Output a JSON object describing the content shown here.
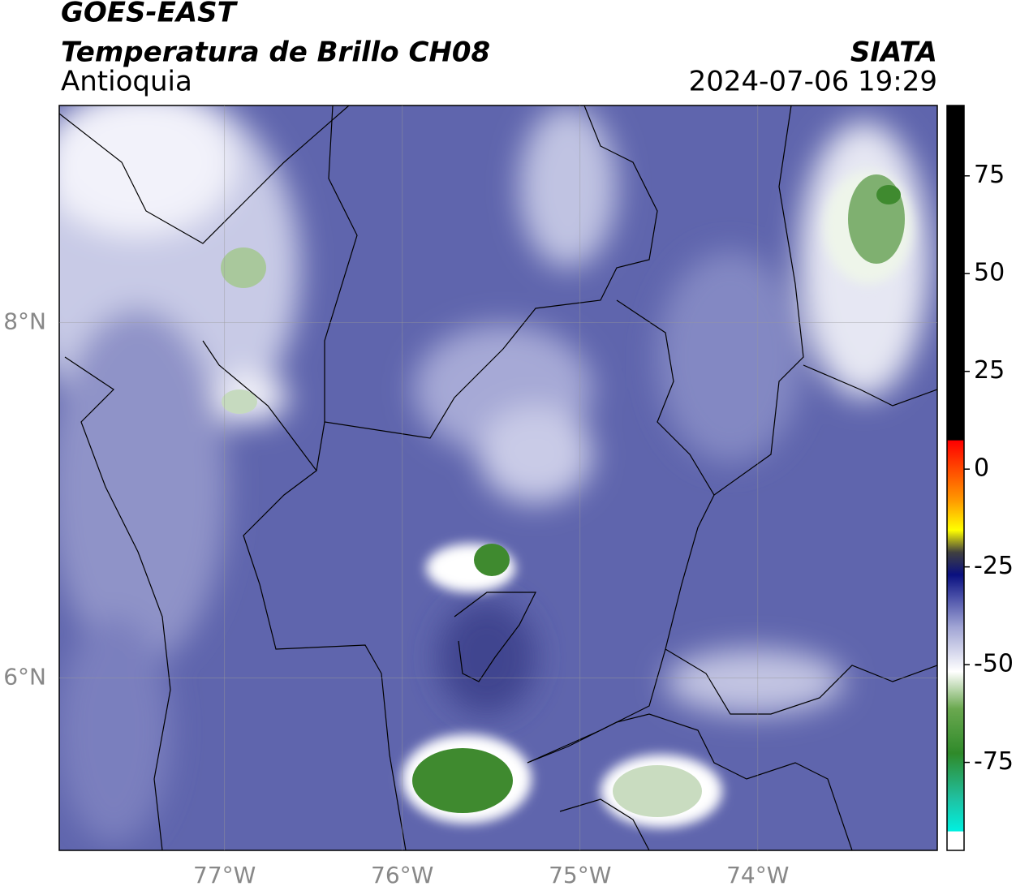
{
  "header": {
    "title": "GOES-EAST",
    "subtitle": "Temperatura de Brillo CH08",
    "region": "Antioquia",
    "source": "SIATA",
    "datetime": "2024-07-06 19:29"
  },
  "map": {
    "xlim": [
      -77.93,
      -72.99
    ],
    "ylim": [
      5.03,
      9.22
    ],
    "xticks": [
      {
        "value": -77,
        "label": "77°W"
      },
      {
        "value": -76,
        "label": "76°W"
      },
      {
        "value": -75,
        "label": "75°W"
      },
      {
        "value": -74,
        "label": "74°W"
      }
    ],
    "yticks": [
      {
        "value": 6,
        "label": "6°N"
      },
      {
        "value": 8,
        "label": "8°N"
      }
    ],
    "grid": true
  },
  "colorbar": {
    "lim": [
      -97.5,
      93
    ],
    "ticks": [
      -75,
      -50,
      -25,
      0,
      25,
      50,
      75
    ]
  }
}
